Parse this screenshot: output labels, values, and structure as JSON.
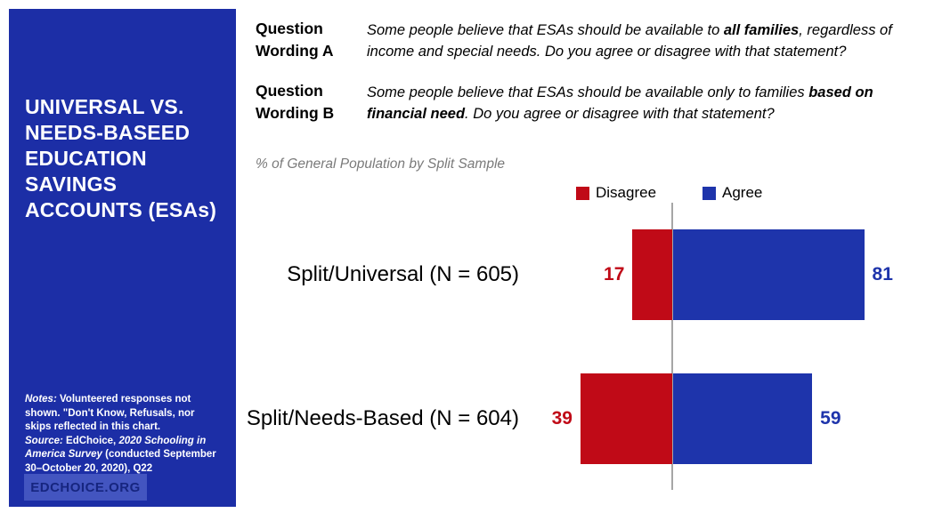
{
  "sidebar": {
    "title_lines": [
      "UNIVERSAL VS.",
      "NEEDS-BASEED",
      "EDUCATION",
      "SAVINGS",
      "ACCOUNTS (ESAs)"
    ],
    "notes": {
      "label": "Notes:",
      "body": " Volunteered responses not shown. \"Don't Know,  Refusals, nor skips reflected in this chart.",
      "source_label": "Source:",
      "source_pre": " EdChoice, ",
      "source_italic": "2020 Schooling in America Survey",
      "source_post": " (conducted September 30–October 20, 2020), Q22"
    },
    "logo_text": "EDCHOICE.ORG",
    "background": "#1c2ea6",
    "logo_bg": "#4355c0",
    "logo_color": "#16257f"
  },
  "questions": [
    {
      "label": "Question Wording A",
      "pre": "Some people believe that ESAs should be available to ",
      "bold": "all families",
      "post": ", regardless of income and special needs. Do you agree or disagree with that statement?"
    },
    {
      "label": "Question Wording B",
      "pre": "Some people believe that ESAs should be available only to families ",
      "bold": "based on financial need",
      "post": ". Do you agree or disagree with that statement?"
    }
  ],
  "chart_data": {
    "type": "bar",
    "orientation": "horizontal",
    "diverging": true,
    "subtitle": "% of General Population by Split Sample",
    "categories": [
      "Split/Universal (N = 605)",
      "Split/Needs-Based (N = 604)"
    ],
    "series": [
      {
        "name": "Disagree",
        "color": "#c00a17",
        "values": [
          17,
          39
        ]
      },
      {
        "name": "Agree",
        "color": "#1e34ab",
        "values": [
          81,
          59
        ]
      }
    ],
    "value_unit": "percent of respondents",
    "axis_baseline_color": "#a6a6a6",
    "legend_position": "top-right",
    "grid": false
  }
}
